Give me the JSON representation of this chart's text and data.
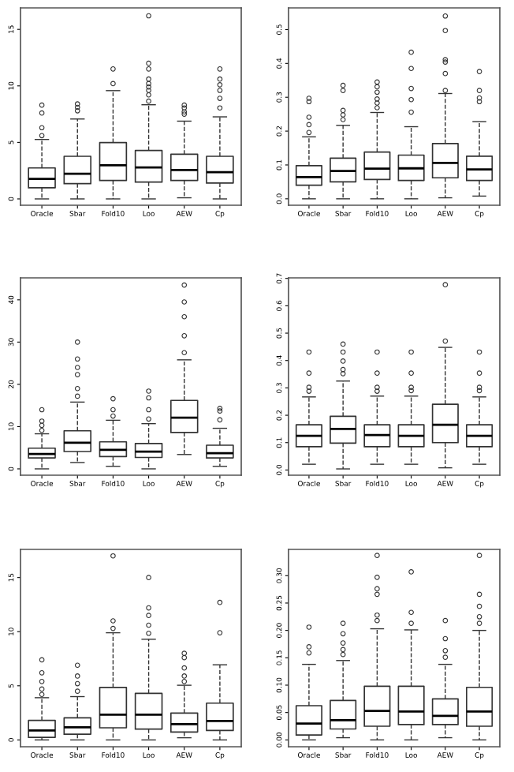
{
  "chart_data": [
    {
      "type": "box",
      "categories": [
        "Oracle",
        "Sbar",
        "Fold10",
        "Loo",
        "AEW",
        "Cp"
      ],
      "ylim": [
        -0.56,
        16.9
      ],
      "yticks": [
        0,
        5,
        10,
        15
      ],
      "marker": "circle",
      "line_style": "dashed",
      "grid": false,
      "boxes": [
        {
          "low": 0,
          "q1": 0.98,
          "median": 1.77,
          "q3": 2.74,
          "high": 5.26,
          "outliers": [
            5.6,
            6.3,
            7.6,
            8.3
          ]
        },
        {
          "low": 0,
          "q1": 1.35,
          "median": 2.23,
          "q3": 3.77,
          "high": 7.07,
          "outliers": [
            7.8,
            8.1,
            8.4
          ]
        },
        {
          "low": 0,
          "q1": 1.63,
          "median": 2.98,
          "q3": 4.98,
          "high": 9.58,
          "outliers": [
            10.2,
            11.5
          ]
        },
        {
          "low": 0,
          "q1": 1.49,
          "median": 2.79,
          "q3": 4.28,
          "high": 8.33,
          "outliers": [
            8.65,
            9.2,
            9.6,
            9.9,
            10.2,
            10.6,
            11.5,
            12,
            16.2
          ]
        },
        {
          "low": 0.1,
          "q1": 1.63,
          "median": 2.56,
          "q3": 3.95,
          "high": 6.88,
          "outliers": [
            7.5,
            7.7,
            8.05,
            8.3
          ]
        },
        {
          "low": 0,
          "q1": 1.4,
          "median": 2.37,
          "q3": 3.77,
          "high": 7.26,
          "outliers": [
            8.05,
            8.9,
            9.6,
            10.1,
            10.6,
            11.5
          ]
        }
      ]
    },
    {
      "type": "box",
      "categories": [
        "Oracle",
        "Sbar",
        "Fold10",
        "Loo",
        "AEW",
        "Cp"
      ],
      "ylim": [
        -0.019,
        0.564
      ],
      "yticks": [
        {
          "value": 0,
          "label": "0.0"
        },
        {
          "value": 0.1,
          "label": "0.1"
        },
        {
          "value": 0.2,
          "label": "0.2"
        },
        {
          "value": 0.3,
          "label": "0.3"
        },
        {
          "value": 0.4,
          "label": "0.4"
        },
        {
          "value": 0.5,
          "label": "0.5"
        }
      ],
      "marker": "circle",
      "line_style": "dashed",
      "grid": false,
      "boxes": [
        {
          "low": 0,
          "q1": 0.04,
          "median": 0.064,
          "q3": 0.098,
          "high": 0.183,
          "outliers": [
            0.196,
            0.219,
            0.241,
            0.287,
            0.297
          ]
        },
        {
          "low": 0,
          "q1": 0.05,
          "median": 0.082,
          "q3": 0.12,
          "high": 0.217,
          "outliers": [
            0.234,
            0.248,
            0.261,
            0.32,
            0.335
          ]
        },
        {
          "low": 0,
          "q1": 0.057,
          "median": 0.089,
          "q3": 0.138,
          "high": 0.255,
          "outliers": [
            0.269,
            0.283,
            0.295,
            0.315,
            0.331,
            0.345
          ]
        },
        {
          "low": 0,
          "q1": 0.054,
          "median": 0.09,
          "q3": 0.129,
          "high": 0.213,
          "outliers": [
            0.256,
            0.293,
            0.326,
            0.385,
            0.433
          ]
        },
        {
          "low": 0.003,
          "q1": 0.062,
          "median": 0.106,
          "q3": 0.163,
          "high": 0.311,
          "outliers": [
            0.32,
            0.37,
            0.404,
            0.411,
            0.497,
            0.54
          ]
        },
        {
          "low": 0.008,
          "q1": 0.054,
          "median": 0.087,
          "q3": 0.126,
          "high": 0.228,
          "outliers": [
            0.287,
            0.298,
            0.32,
            0.376
          ]
        }
      ]
    },
    {
      "type": "box",
      "categories": [
        "Oracle",
        "Sbar",
        "Fold10",
        "Loo",
        "AEW",
        "Cp"
      ],
      "ylim": [
        -1.5,
        45.2
      ],
      "yticks": [
        0,
        10,
        20,
        30,
        40
      ],
      "marker": "circle",
      "line_style": "dashed",
      "grid": false,
      "boxes": [
        {
          "low": 0,
          "q1": 2.6,
          "median": 3.5,
          "q3": 4.9,
          "high": 8.3,
          "outliers": [
            9.1,
            10.3,
            11.3,
            14
          ]
        },
        {
          "low": 1.5,
          "q1": 4.1,
          "median": 6.2,
          "q3": 9.0,
          "high": 15.8,
          "outliers": [
            17.2,
            19,
            22.3,
            24,
            26,
            30
          ]
        },
        {
          "low": 0.6,
          "q1": 2.9,
          "median": 4.5,
          "q3": 6.4,
          "high": 11.5,
          "outliers": [
            12.5,
            14,
            16.6
          ]
        },
        {
          "low": 0,
          "q1": 2.7,
          "median": 4.1,
          "q3": 6.0,
          "high": 10.7,
          "outliers": [
            11.8,
            14,
            16.8,
            18.4
          ]
        },
        {
          "low": 3.4,
          "q1": 8.6,
          "median": 12.1,
          "q3": 16.2,
          "high": 25.8,
          "outliers": [
            27.5,
            31.5,
            36,
            39.5,
            43.5
          ]
        },
        {
          "low": 0.6,
          "q1": 2.6,
          "median": 3.7,
          "q3": 5.6,
          "high": 9.6,
          "outliers": [
            11.6,
            13.7,
            14.3
          ]
        }
      ]
    },
    {
      "type": "box",
      "categories": [
        "Oracle",
        "Sbar",
        "Fold10",
        "Loo",
        "AEW",
        "Cp"
      ],
      "ylim": [
        -0.019,
        0.702
      ],
      "yticks": [
        {
          "value": 0,
          "label": "0.0"
        },
        {
          "value": 0.1,
          "label": "0.1"
        },
        {
          "value": 0.2,
          "label": "0.2"
        },
        {
          "value": 0.3,
          "label": "0.3"
        },
        {
          "value": 0.4,
          "label": "0.4"
        },
        {
          "value": 0.5,
          "label": "0.5"
        },
        {
          "value": 0.6,
          "label": "0.6"
        },
        {
          "value": 0.7,
          "label": "0.7"
        }
      ],
      "marker": "circle",
      "line_style": "dashed",
      "grid": false,
      "boxes": [
        {
          "low": 0.021,
          "q1": 0.085,
          "median": 0.125,
          "q3": 0.165,
          "high": 0.267,
          "outliers": [
            0.288,
            0.302,
            0.354,
            0.431
          ]
        },
        {
          "low": 0.004,
          "q1": 0.098,
          "median": 0.15,
          "q3": 0.196,
          "high": 0.325,
          "outliers": [
            0.352,
            0.367,
            0.398,
            0.431,
            0.46
          ]
        },
        {
          "low": 0.021,
          "q1": 0.085,
          "median": 0.128,
          "q3": 0.165,
          "high": 0.27,
          "outliers": [
            0.288,
            0.302,
            0.354,
            0.431
          ]
        },
        {
          "low": 0.021,
          "q1": 0.085,
          "median": 0.125,
          "q3": 0.165,
          "high": 0.27,
          "outliers": [
            0.29,
            0.302,
            0.354,
            0.431
          ]
        },
        {
          "low": 0.008,
          "q1": 0.1,
          "median": 0.165,
          "q3": 0.24,
          "high": 0.448,
          "outliers": [
            0.471,
            0.677
          ]
        },
        {
          "low": 0.021,
          "q1": 0.085,
          "median": 0.125,
          "q3": 0.165,
          "high": 0.267,
          "outliers": [
            0.29,
            0.302,
            0.354,
            0.431
          ]
        }
      ]
    },
    {
      "type": "box",
      "categories": [
        "Oracle",
        "Sbar",
        "Fold10",
        "Loo",
        "AEW",
        "Cp"
      ],
      "ylim": [
        -0.63,
        17.6
      ],
      "yticks": [
        0,
        5,
        10,
        15
      ],
      "marker": "circle",
      "line_style": "dashed",
      "grid": false,
      "boxes": [
        {
          "low": 0,
          "q1": 0.24,
          "median": 0.87,
          "q3": 1.8,
          "high": 3.9,
          "outliers": [
            4.2,
            4.7,
            5.4,
            6.2,
            7.4
          ]
        },
        {
          "low": 0,
          "q1": 0.53,
          "median": 1.17,
          "q3": 2.04,
          "high": 4.0,
          "outliers": [
            4.5,
            5.2,
            5.9,
            6.9
          ]
        },
        {
          "low": 0,
          "q1": 1.12,
          "median": 2.33,
          "q3": 4.85,
          "high": 9.9,
          "outliers": [
            10.3,
            11.0,
            17
          ]
        },
        {
          "low": 0,
          "q1": 1.0,
          "median": 2.33,
          "q3": 4.3,
          "high": 9.3,
          "outliers": [
            9.85,
            10.6,
            11.5,
            12.2,
            15
          ]
        },
        {
          "low": 0.2,
          "q1": 0.73,
          "median": 1.46,
          "q3": 2.48,
          "high": 5.05,
          "outliers": [
            5.4,
            5.9,
            6.65,
            7.6,
            8.0
          ]
        },
        {
          "low": 0,
          "q1": 0.87,
          "median": 1.75,
          "q3": 3.4,
          "high": 6.94,
          "outliers": [
            9.9,
            12.7
          ]
        }
      ]
    },
    {
      "type": "box",
      "categories": [
        "Oracle",
        "Sbar",
        "Fold10",
        "Loo",
        "AEW",
        "Cp"
      ],
      "ylim": [
        -0.0125,
        0.348
      ],
      "yticks": [
        {
          "value": 0,
          "label": "0.00"
        },
        {
          "value": 0.05,
          "label": "0.05"
        },
        {
          "value": 0.1,
          "label": "0.10"
        },
        {
          "value": 0.15,
          "label": "0.15"
        },
        {
          "value": 0.2,
          "label": "0.20"
        },
        {
          "value": 0.25,
          "label": "0.25"
        },
        {
          "value": 0.3,
          "label": "0.30"
        }
      ],
      "marker": "circle",
      "line_style": "dashed",
      "grid": false,
      "boxes": [
        {
          "low": 0,
          "q1": 0.009,
          "median": 0.03,
          "q3": 0.0625,
          "high": 0.138,
          "outliers": [
            0.159,
            0.17,
            0.206
          ]
        },
        {
          "low": 0.004,
          "q1": 0.02,
          "median": 0.036,
          "q3": 0.072,
          "high": 0.145,
          "outliers": [
            0.156,
            0.165,
            0.177,
            0.194,
            0.213
          ]
        },
        {
          "low": 0,
          "q1": 0.025,
          "median": 0.053,
          "q3": 0.098,
          "high": 0.203,
          "outliers": [
            0.218,
            0.228,
            0.266,
            0.276,
            0.297,
            0.337
          ]
        },
        {
          "low": 0,
          "q1": 0.028,
          "median": 0.052,
          "q3": 0.098,
          "high": 0.201,
          "outliers": [
            0.213,
            0.233,
            0.307
          ]
        },
        {
          "low": 0.004,
          "q1": 0.028,
          "median": 0.044,
          "q3": 0.075,
          "high": 0.138,
          "outliers": [
            0.151,
            0.163,
            0.185,
            0.218
          ]
        },
        {
          "low": 0,
          "q1": 0.025,
          "median": 0.052,
          "q3": 0.096,
          "high": 0.2,
          "outliers": [
            0.213,
            0.225,
            0.244,
            0.266,
            0.337
          ]
        }
      ]
    }
  ]
}
